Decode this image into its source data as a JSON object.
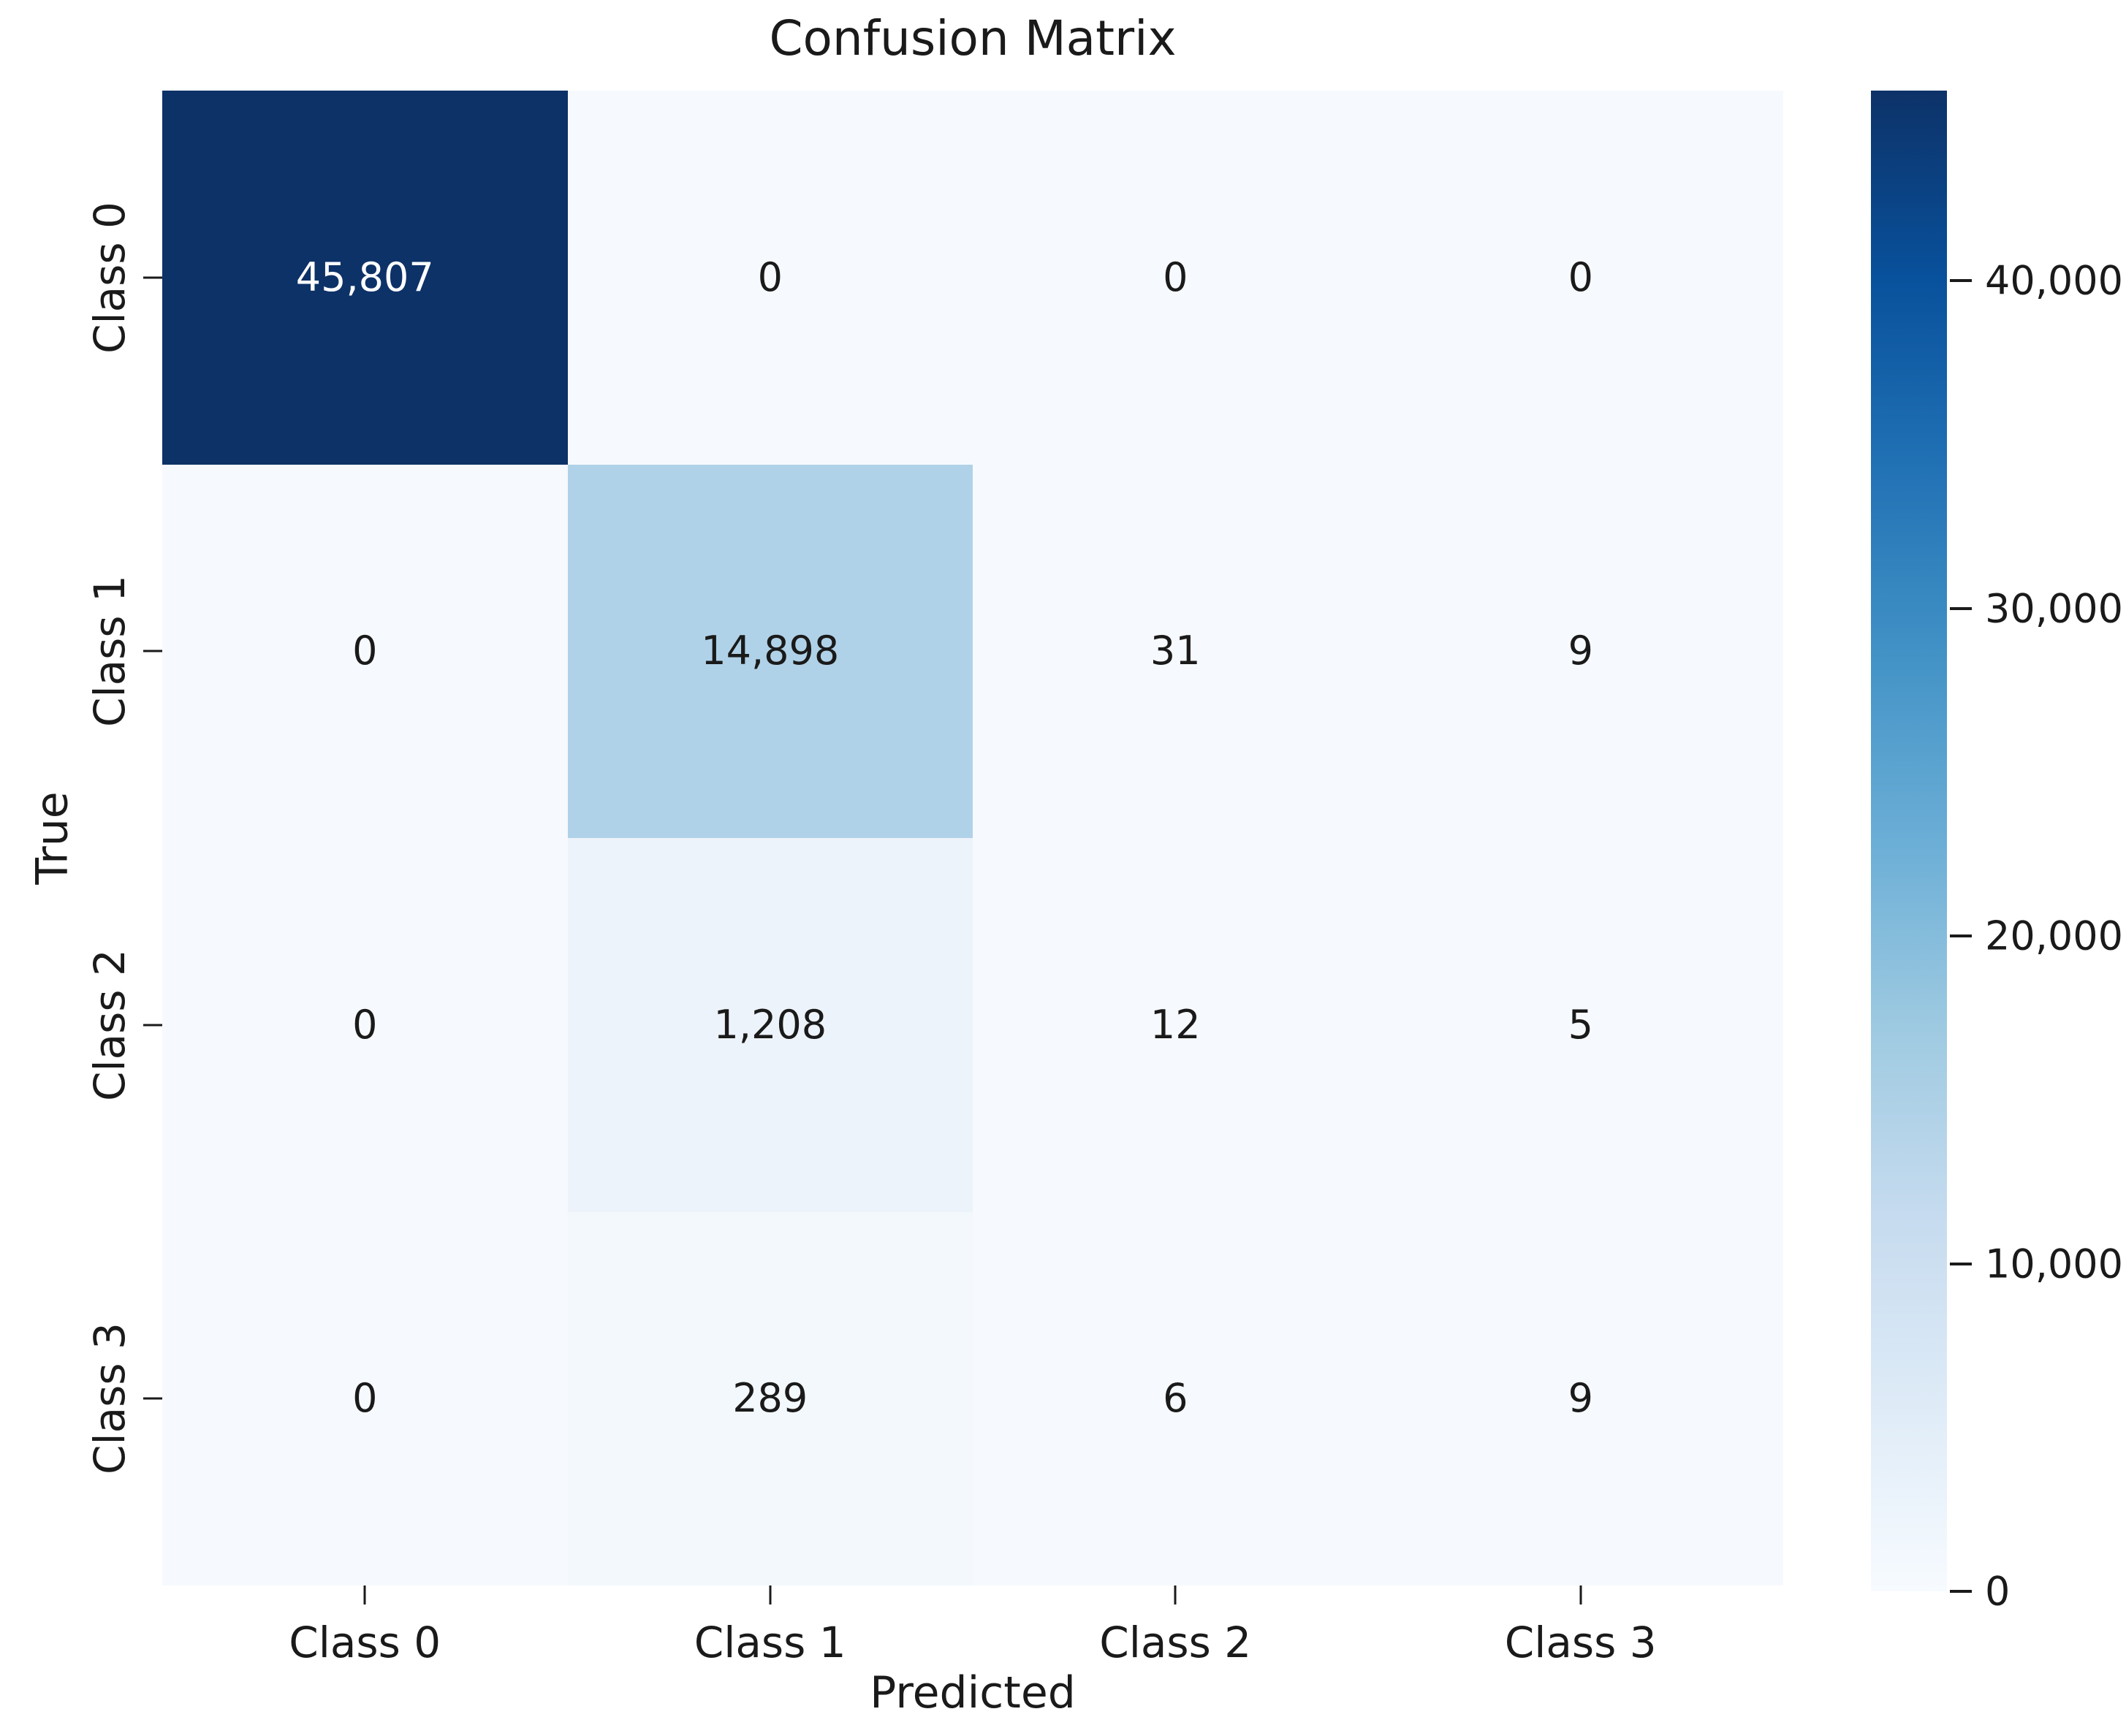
{
  "chart_data": {
    "type": "heatmap",
    "title": "Confusion Matrix",
    "xlabel": "Predicted",
    "ylabel": "True",
    "x_tick_labels": [
      "Class 0",
      "Class 1",
      "Class 2",
      "Class 3"
    ],
    "y_tick_labels": [
      "Class 0",
      "Class 1",
      "Class 2",
      "Class 3"
    ],
    "matrix": [
      [
        45807,
        0,
        0,
        0
      ],
      [
        0,
        14898,
        31,
        9
      ],
      [
        0,
        1208,
        12,
        5
      ],
      [
        0,
        289,
        6,
        9
      ]
    ],
    "cell_labels": [
      [
        "45,807",
        "0",
        "0",
        "0"
      ],
      [
        "0",
        "14,898",
        "31",
        "9"
      ],
      [
        "0",
        "1,208",
        "12",
        "5"
      ],
      [
        "0",
        "289",
        "6",
        "9"
      ]
    ],
    "cell_colors": [
      [
        "#0d3268",
        "#f6f9fd",
        "#f6f9fd",
        "#f6f9fd"
      ],
      [
        "#f6f9fd",
        "#b0d2e8",
        "#f6f9fd",
        "#f6f9fd"
      ],
      [
        "#f6f9fd",
        "#edf3fa",
        "#f6f9fd",
        "#f6f9fd"
      ],
      [
        "#f6f9fd",
        "#f3f8fc",
        "#f6f9fd",
        "#f6f9fd"
      ]
    ],
    "cell_text_colors": [
      [
        "#ffffff",
        "#1a1a1a",
        "#1a1a1a",
        "#1a1a1a"
      ],
      [
        "#1a1a1a",
        "#1a1a1a",
        "#1a1a1a",
        "#1a1a1a"
      ],
      [
        "#1a1a1a",
        "#1a1a1a",
        "#1a1a1a",
        "#1a1a1a"
      ],
      [
        "#1a1a1a",
        "#1a1a1a",
        "#1a1a1a",
        "#1a1a1a"
      ]
    ],
    "vmin": 0,
    "vmax": 45807,
    "colormap": "Blues",
    "colormap_stops": [
      "#f7fbff",
      "#deebf7",
      "#c6dbef",
      "#9ecae1",
      "#6baed6",
      "#4292c6",
      "#2171b5",
      "#08519c",
      "#0d3268"
    ],
    "colorbar_ticks": [
      {
        "value": 40000,
        "label": "40,000"
      },
      {
        "value": 30000,
        "label": "30,000"
      },
      {
        "value": 20000,
        "label": "20,000"
      },
      {
        "value": 10000,
        "label": "10,000"
      },
      {
        "value": 0,
        "label": "0"
      }
    ],
    "grid": false,
    "legend_position": "colorbar-right"
  }
}
